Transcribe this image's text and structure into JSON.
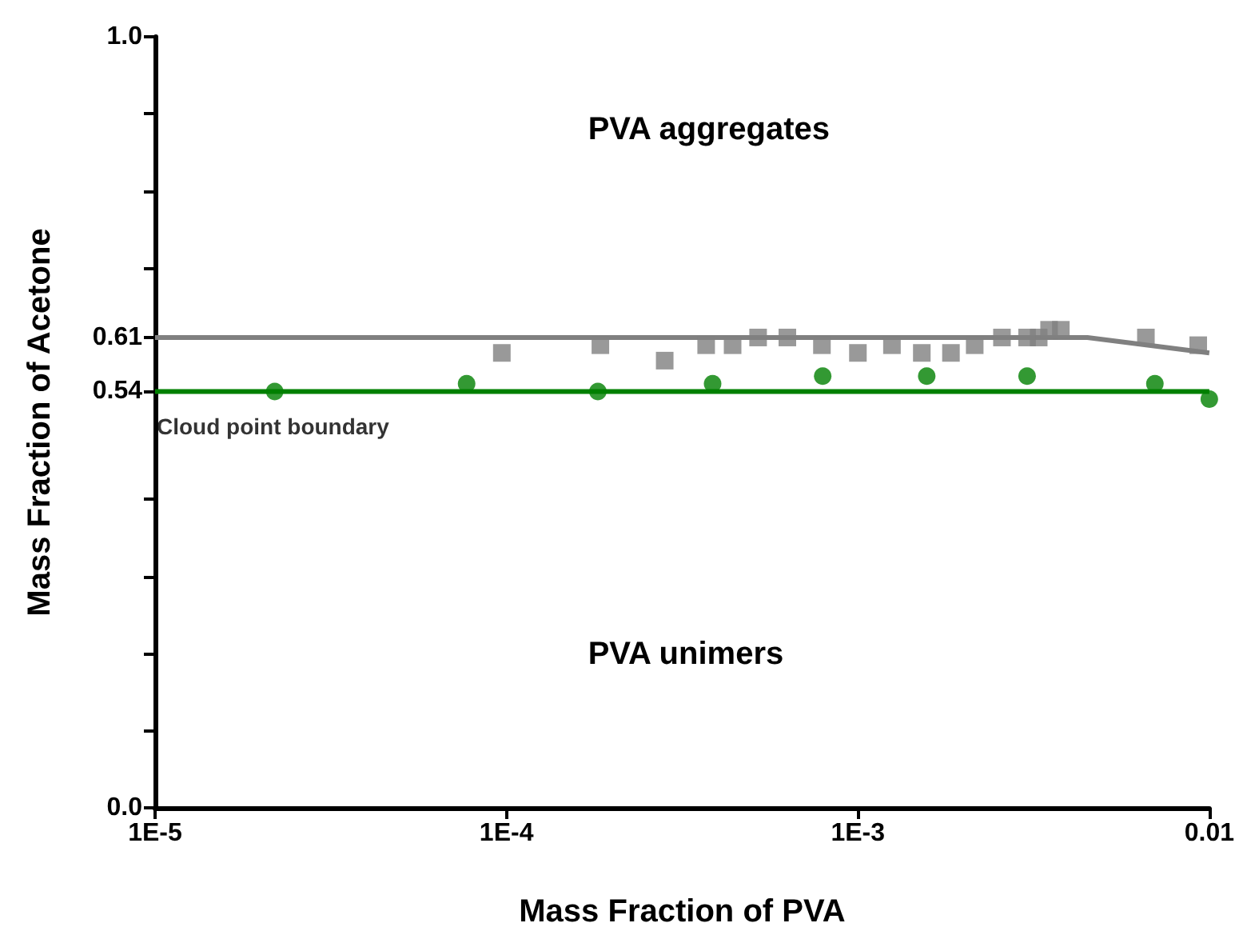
{
  "chart_data": {
    "type": "scatter",
    "xlabel": "Mass Fraction of PVA",
    "ylabel": "Mass Fraction of Acetone",
    "log": "x",
    "grid": false,
    "xlim": [
      1e-05,
      0.01
    ],
    "xticks": [
      {
        "value": 1e-05,
        "label": "1E-5"
      },
      {
        "value": 0.0001,
        "label": "1E-4"
      },
      {
        "value": 0.001,
        "label": "1E-3"
      },
      0.01
    ],
    "ylim": [
      0,
      1
    ],
    "yticks": [
      {
        "value": 0,
        "label": "0.0"
      },
      {
        "value": 0.1,
        "label": null
      },
      {
        "value": 0.2,
        "label": null
      },
      {
        "value": 0.3,
        "label": null
      },
      {
        "value": 0.4,
        "label": null
      },
      0.54,
      0.61,
      {
        "value": 0.7,
        "label": null
      },
      {
        "value": 0.8,
        "label": null
      },
      {
        "value": 0.9,
        "label": null
      },
      {
        "value": 1,
        "label": "1.0"
      }
    ],
    "series": [
      {
        "type": "line",
        "marker": "none",
        "color": "#808080",
        "x": [
          1e-05,
          0.0045,
          0.01
        ],
        "values": [
          0.61,
          0.61,
          0.59
        ]
      },
      {
        "type": "line",
        "marker": "none",
        "color": "#008000",
        "x": [
          1e-05,
          0.01
        ],
        "values": [
          0.54,
          0.54
        ]
      },
      {
        "marker": "square",
        "color": "#808080",
        "x": [
          9.7e-05,
          0.000185,
          0.000282,
          0.00037,
          0.00044,
          0.00052,
          0.00063,
          0.00079,
          0.001,
          0.00125,
          0.00152,
          0.00184,
          0.00215,
          0.00257,
          0.00303,
          0.00327,
          0.0035,
          0.00378,
          0.0066,
          0.0093
        ],
        "values": [
          0.59,
          0.6,
          0.58,
          0.6,
          0.6,
          0.61,
          0.61,
          0.6,
          0.59,
          0.6,
          0.59,
          0.59,
          0.6,
          0.61,
          0.61,
          0.61,
          0.62,
          0.62,
          0.61,
          0.6
        ]
      },
      {
        "marker": "circle",
        "color": "#008000",
        "x": [
          2.19e-05,
          7.7e-05,
          0.000182,
          0.000386,
          0.000794,
          0.00157,
          0.00303,
          0.007,
          0.01
        ],
        "values": [
          0.54,
          0.55,
          0.54,
          0.55,
          0.56,
          0.56,
          0.56,
          0.55,
          0.53
        ]
      }
    ],
    "annotations": [
      "PVA aggregates",
      "PVA unimers",
      {
        "text": "Cloud point boundary",
        "x": 1e-05,
        "y": 0.54
      }
    ]
  }
}
